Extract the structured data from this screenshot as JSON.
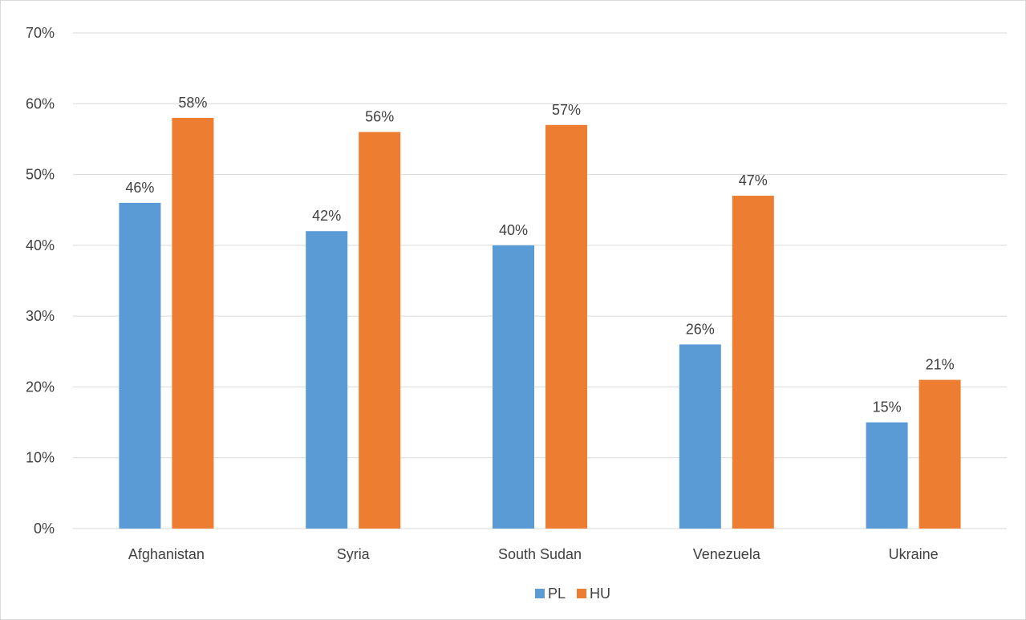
{
  "chart_data": {
    "type": "bar",
    "categories": [
      "Afghanistan",
      "Syria",
      "South Sudan",
      "Venezuela",
      "Ukraine"
    ],
    "series": [
      {
        "name": "PL",
        "color": "#5b9bd5",
        "values": [
          46,
          42,
          40,
          26,
          15
        ],
        "labels": [
          "46%",
          "42%",
          "40%",
          "26%",
          "15%"
        ]
      },
      {
        "name": "HU",
        "color": "#ed7d31",
        "values": [
          58,
          56,
          57,
          47,
          21
        ],
        "labels": [
          "58%",
          "56%",
          "57%",
          "47%",
          "21%"
        ]
      }
    ],
    "ylim": [
      0,
      70
    ],
    "yticks": [
      {
        "value": 0,
        "label": "0%"
      },
      {
        "value": 10,
        "label": "10%"
      },
      {
        "value": 20,
        "label": "20%"
      },
      {
        "value": 30,
        "label": "30%"
      },
      {
        "value": 40,
        "label": "40%"
      },
      {
        "value": 50,
        "label": "50%"
      },
      {
        "value": 60,
        "label": "60%"
      },
      {
        "value": 70,
        "label": "70%"
      }
    ],
    "grid": true,
    "legend_position": "bottom"
  }
}
